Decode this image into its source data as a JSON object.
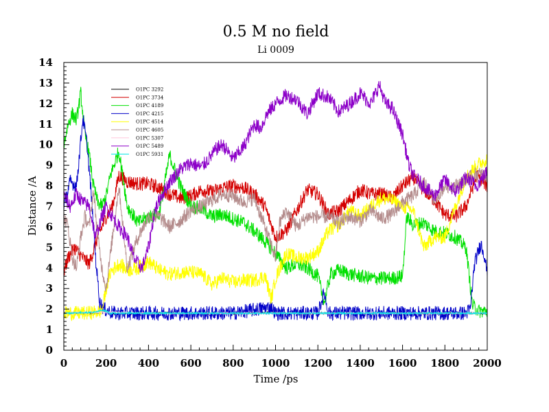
{
  "chart_data": {
    "type": "line",
    "title": "0.5 M no field",
    "subtitle": "Li 0009",
    "xlabel": "Time /ps",
    "ylabel": "Distance /A",
    "xlim": [
      0,
      2000
    ],
    "ylim": [
      0,
      14
    ],
    "xticks": [
      0,
      200,
      400,
      600,
      800,
      1000,
      1200,
      1400,
      1600,
      1800,
      2000
    ],
    "yticks": [
      0,
      1,
      2,
      3,
      4,
      5,
      6,
      7,
      8,
      9,
      10,
      11,
      12,
      13,
      14
    ],
    "legend_position": "top-left",
    "series": [
      {
        "name": "O1PC 3292",
        "color": "#000000",
        "x": [
          0,
          100,
          150,
          180,
          200,
          220,
          300,
          400,
          500,
          600,
          700,
          800,
          900,
          980,
          1000,
          1100,
          1200,
          1300,
          1400,
          1500,
          1600,
          1700,
          1800,
          1900,
          2000
        ],
        "y": [
          1.8,
          1.8,
          1.8,
          1.85,
          1.9,
          1.8,
          1.8,
          1.8,
          1.82,
          1.8,
          1.8,
          1.8,
          1.8,
          1.85,
          1.8,
          1.8,
          1.8,
          1.8,
          1.8,
          1.8,
          1.8,
          1.8,
          1.8,
          1.8,
          1.8
        ]
      },
      {
        "name": "O1PC 3734",
        "color": "#d40000",
        "x": [
          0,
          20,
          50,
          80,
          120,
          160,
          200,
          230,
          260,
          300,
          350,
          400,
          450,
          500,
          550,
          600,
          650,
          700,
          750,
          800,
          850,
          900,
          950,
          1000,
          1050,
          1100,
          1150,
          1200,
          1250,
          1300,
          1350,
          1400,
          1450,
          1500,
          1550,
          1600,
          1650,
          1700,
          1750,
          1800,
          1850,
          1900,
          1950,
          2000
        ],
        "y": [
          3.8,
          4.5,
          5.0,
          4.6,
          4.2,
          5.5,
          6.5,
          7.0,
          8.5,
          8.2,
          8.1,
          8.1,
          7.9,
          7.6,
          7.4,
          7.5,
          7.8,
          7.7,
          7.9,
          8.0,
          7.9,
          7.6,
          7.0,
          5.5,
          5.8,
          6.8,
          7.8,
          7.6,
          6.6,
          6.8,
          7.3,
          7.8,
          7.6,
          7.6,
          7.4,
          8.0,
          8.4,
          7.8,
          7.3,
          6.6,
          6.5,
          7.0,
          8.5,
          8.0
        ]
      },
      {
        "name": "O1PC 4189",
        "color": "#00e000",
        "x": [
          0,
          20,
          40,
          60,
          80,
          100,
          120,
          140,
          160,
          180,
          200,
          220,
          260,
          300,
          350,
          400,
          450,
          500,
          550,
          600,
          650,
          700,
          750,
          800,
          850,
          900,
          950,
          1000,
          1050,
          1100,
          1150,
          1200,
          1230,
          1260,
          1300,
          1350,
          1400,
          1450,
          1500,
          1550,
          1600,
          1620,
          1650,
          1700,
          1750,
          1800,
          1850,
          1900,
          1930,
          1960,
          2000
        ],
        "y": [
          10.0,
          11.0,
          11.5,
          11.2,
          12.5,
          10.5,
          9.5,
          8.0,
          7.2,
          7.0,
          7.5,
          8.5,
          9.7,
          7.0,
          6.2,
          6.5,
          6.6,
          9.5,
          8.0,
          7.0,
          6.9,
          6.5,
          6.6,
          6.4,
          6.2,
          5.8,
          5.3,
          4.7,
          4.0,
          4.2,
          4.0,
          3.6,
          2.3,
          3.7,
          3.9,
          3.7,
          3.6,
          3.5,
          3.5,
          3.5,
          3.6,
          6.5,
          6.1,
          6.2,
          5.8,
          5.7,
          5.5,
          5.0,
          2.2,
          1.9,
          1.9
        ]
      },
      {
        "name": "O1PC 4215",
        "color": "#0000c8",
        "x": [
          0,
          30,
          60,
          90,
          110,
          130,
          150,
          170,
          190,
          210,
          240,
          300,
          400,
          600,
          800,
          980,
          1000,
          1200,
          1230,
          1250,
          1400,
          1600,
          1800,
          1900,
          1920,
          1940,
          1970,
          1990,
          2000
        ],
        "y": [
          7.0,
          8.2,
          8.0,
          11.3,
          10.0,
          7.5,
          4.5,
          2.3,
          2.0,
          1.9,
          1.8,
          1.8,
          1.8,
          1.8,
          1.8,
          2.1,
          1.8,
          1.8,
          2.8,
          1.8,
          1.8,
          1.8,
          1.8,
          1.8,
          2.0,
          4.2,
          5.2,
          4.5,
          3.6
        ]
      },
      {
        "name": "O1PC 4514",
        "color": "#ffff00",
        "x": [
          0,
          100,
          150,
          180,
          200,
          220,
          260,
          300,
          350,
          400,
          450,
          500,
          550,
          600,
          650,
          700,
          750,
          800,
          850,
          900,
          950,
          980,
          1000,
          1050,
          1100,
          1150,
          1200,
          1250,
          1300,
          1350,
          1400,
          1450,
          1500,
          1550,
          1600,
          1650,
          1700,
          1750,
          1800,
          1850,
          1900,
          1950,
          2000
        ],
        "y": [
          1.8,
          1.8,
          1.85,
          1.9,
          3.0,
          3.8,
          4.2,
          3.9,
          4.0,
          4.3,
          3.9,
          3.7,
          3.8,
          3.8,
          3.7,
          3.2,
          3.5,
          3.3,
          3.4,
          3.4,
          3.6,
          2.5,
          3.5,
          4.7,
          4.5,
          4.5,
          4.8,
          5.8,
          6.1,
          6.8,
          6.5,
          7.0,
          7.4,
          7.3,
          7.0,
          6.8,
          5.0,
          5.5,
          5.5,
          7.0,
          8.4,
          9.0,
          9.3
        ]
      },
      {
        "name": "O1PC 4605",
        "color": "#b48c8c",
        "x": [
          0,
          20,
          40,
          60,
          80,
          100,
          120,
          140,
          160,
          180,
          200,
          230,
          260,
          300,
          350,
          400,
          450,
          500,
          550,
          600,
          650,
          700,
          750,
          800,
          850,
          900,
          950,
          1000,
          1020,
          1050,
          1100,
          1150,
          1200,
          1250,
          1300,
          1350,
          1400,
          1450,
          1500,
          1550,
          1600,
          1650,
          1700,
          1750,
          1800,
          1850,
          1900,
          1950,
          2000
        ],
        "y": [
          6.5,
          6.0,
          4.5,
          4.0,
          5.5,
          6.5,
          6.0,
          7.8,
          5.5,
          4.0,
          3.0,
          5.5,
          8.0,
          4.0,
          5.5,
          6.5,
          6.5,
          6.0,
          6.3,
          6.8,
          7.0,
          7.3,
          7.6,
          7.5,
          7.2,
          7.4,
          6.0,
          4.5,
          6.2,
          6.8,
          6.0,
          6.5,
          6.5,
          6.5,
          6.2,
          6.5,
          6.3,
          6.8,
          6.4,
          6.6,
          7.2,
          7.5,
          8.2,
          7.3,
          8.0,
          8.0,
          8.3,
          8.6,
          8.5
        ]
      },
      {
        "name": "O1PC 5307",
        "color": "#ffc8dc",
        "x": [
          0,
          200,
          400,
          600,
          800,
          1000,
          1200,
          1400,
          1600,
          1800,
          2000
        ],
        "y": [
          1.8,
          1.85,
          1.8,
          1.8,
          1.8,
          1.8,
          1.8,
          1.8,
          1.8,
          1.8,
          1.8
        ]
      },
      {
        "name": "O1PC 5489",
        "color": "#8c00c8",
        "x": [
          0,
          30,
          60,
          90,
          120,
          150,
          180,
          200,
          230,
          260,
          300,
          330,
          350,
          370,
          400,
          430,
          460,
          500,
          550,
          600,
          650,
          700,
          720,
          750,
          800,
          850,
          900,
          930,
          960,
          1000,
          1050,
          1100,
          1150,
          1200,
          1250,
          1300,
          1350,
          1400,
          1450,
          1490,
          1520,
          1550,
          1600,
          1630,
          1650,
          1700,
          1750,
          1800,
          1850,
          1900,
          1950,
          2000
        ],
        "y": [
          7.5,
          7.0,
          7.6,
          7.2,
          7.0,
          5.5,
          6.5,
          7.0,
          6.5,
          6.0,
          5.5,
          4.5,
          4.2,
          4.0,
          5.0,
          6.8,
          7.5,
          8.2,
          8.8,
          9.1,
          8.9,
          9.5,
          9.8,
          10.0,
          9.3,
          9.9,
          11.0,
          10.8,
          11.5,
          12.0,
          12.4,
          12.2,
          11.5,
          12.5,
          12.3,
          11.6,
          12.0,
          12.5,
          12.0,
          12.9,
          12.0,
          11.8,
          10.5,
          9.0,
          8.5,
          8.0,
          7.5,
          8.3,
          7.7,
          8.4,
          8.0,
          8.7
        ]
      },
      {
        "name": "O1PC 5931",
        "color": "#00e6e6",
        "x": [
          0,
          150,
          180,
          200,
          220,
          400,
          600,
          800,
          1000,
          1200,
          1400,
          1600,
          1800,
          2000
        ],
        "y": [
          1.8,
          1.85,
          1.95,
          1.9,
          1.8,
          1.8,
          1.8,
          1.8,
          1.8,
          1.8,
          1.8,
          1.8,
          1.8,
          1.8
        ]
      }
    ]
  }
}
